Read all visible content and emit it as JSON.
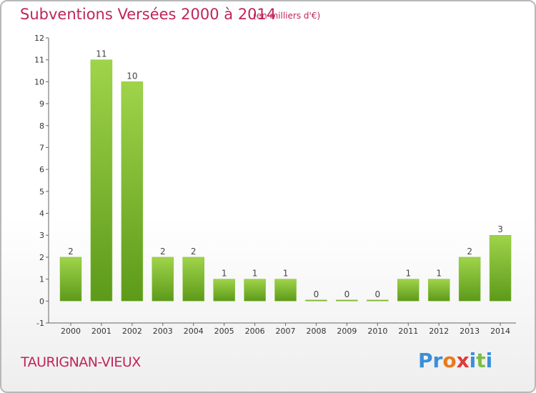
{
  "header": {
    "title": "Subventions Versées 2000 à 2014",
    "unit": "(en milliers d'€)"
  },
  "footer": {
    "commune": "TAURIGNAN-VIEUX",
    "logo_letters": [
      "P",
      "r",
      "o",
      "x",
      "i",
      "t",
      "i"
    ],
    "logo_colors": [
      "#3a8fd8",
      "#3a8fd8",
      "#e87a1e",
      "#e03a3a",
      "#3a8fd8",
      "#7bc043",
      "#3a8fd8"
    ]
  },
  "colors": {
    "bar_light": "#9fd44a",
    "bar_dark": "#5d9a1a",
    "title": "#c0245c"
  },
  "chart_data": {
    "type": "bar",
    "title": "Subventions Versées 2000 à 2014",
    "xlabel": "",
    "ylabel": "",
    "categories": [
      "2000",
      "2001",
      "2002",
      "2003",
      "2004",
      "2005",
      "2006",
      "2007",
      "2008",
      "2009",
      "2010",
      "2011",
      "2012",
      "2013",
      "2014"
    ],
    "values": [
      2,
      11,
      10,
      2,
      2,
      1,
      1,
      1,
      0,
      0,
      0,
      1,
      1,
      2,
      3
    ],
    "value_labels": [
      "2",
      "11",
      "10",
      "2",
      "2",
      "1",
      "1",
      "1",
      "0",
      "0",
      "0",
      "1",
      "1",
      "2",
      "3"
    ],
    "yticks": [
      "-1",
      "0",
      "1",
      "2",
      "3",
      "4",
      "5",
      "6",
      "7",
      "8",
      "9",
      "10",
      "11",
      "12"
    ],
    "ylim": [
      -1,
      12
    ],
    "grid": false,
    "legend": "none"
  }
}
